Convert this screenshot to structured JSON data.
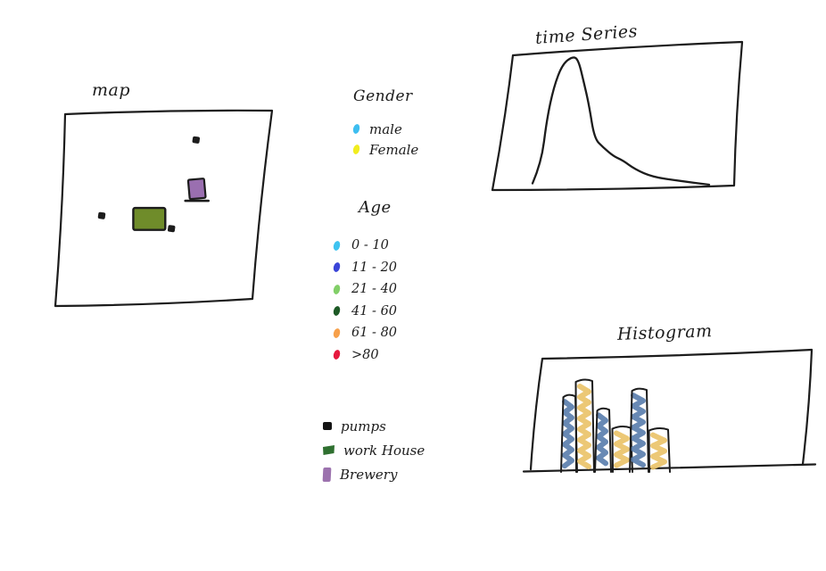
{
  "canvas": {
    "background": "#ffffff",
    "ink": "#1c1c1c"
  },
  "panels": {
    "map": {
      "title": "map"
    },
    "time_series": {
      "title": "time Series"
    },
    "histogram": {
      "title": "Histogram"
    }
  },
  "legend": {
    "gender": {
      "title": "Gender",
      "items": [
        {
          "label": "male",
          "color": "#3ebef0"
        },
        {
          "label": "Female",
          "color": "#f1ed1f"
        }
      ]
    },
    "age": {
      "title": "Age",
      "items": [
        {
          "label": "0 - 10",
          "color": "#3ec3f0"
        },
        {
          "label": "11 - 20",
          "color": "#3a45d8"
        },
        {
          "label": "21 - 40",
          "color": "#82cf68"
        },
        {
          "label": "41 - 60",
          "color": "#1d5a26"
        },
        {
          "label": "61 - 80",
          "color": "#f7a04b"
        },
        {
          "label": ">80",
          "color": "#e6193e"
        }
      ]
    },
    "markers": {
      "items": [
        {
          "label": "pumps",
          "color": "#141414",
          "shape": "square"
        },
        {
          "label": "work House",
          "color": "#2f7030",
          "shape": "flag"
        },
        {
          "label": "Brewery",
          "color": "#9c72ae",
          "shape": "tall-rect"
        }
      ]
    }
  },
  "chart_data": [
    {
      "type": "map",
      "name": "map",
      "title": "map",
      "markers": [
        {
          "kind": "pump",
          "x": 0.66,
          "y": 0.13
        },
        {
          "kind": "pump",
          "x": 0.2,
          "y": 0.54
        },
        {
          "kind": "pump",
          "x": 0.54,
          "y": 0.61
        },
        {
          "kind": "work-house",
          "x": 0.354,
          "y": 0.498,
          "w": 0.156,
          "h": 0.119,
          "color": "#6f8c2a"
        },
        {
          "kind": "brewery",
          "x": 0.625,
          "y": 0.342,
          "w": 0.078,
          "h": 0.105,
          "color": "#9a6fb0"
        }
      ]
    },
    {
      "type": "line",
      "name": "time-series",
      "title": "time Series",
      "x_axis": "time (no scale drawn)",
      "y_axis": "count (no scale drawn)",
      "points": [
        [
          0.0,
          0.01
        ],
        [
          0.05,
          0.17
        ],
        [
          0.08,
          0.5
        ],
        [
          0.12,
          0.76
        ],
        [
          0.17,
          0.94
        ],
        [
          0.23,
          1.0
        ],
        [
          0.26,
          0.97
        ],
        [
          0.29,
          0.8
        ],
        [
          0.32,
          0.62
        ],
        [
          0.35,
          0.36
        ],
        [
          0.4,
          0.29
        ],
        [
          0.46,
          0.22
        ],
        [
          0.51,
          0.19
        ],
        [
          0.58,
          0.12
        ],
        [
          0.68,
          0.06
        ],
        [
          0.83,
          0.03
        ],
        [
          1.0,
          0.0
        ]
      ]
    },
    {
      "type": "bar",
      "name": "histogram",
      "title": "Histogram",
      "values_relative": [
        0.83,
        1.0,
        0.68,
        0.48,
        0.9,
        0.46
      ],
      "bar_colors": [
        "#5b7fae",
        "#eac36a",
        "#5b7fae",
        "#eac36a",
        "#5b7fae",
        "#eac36a"
      ]
    }
  ]
}
